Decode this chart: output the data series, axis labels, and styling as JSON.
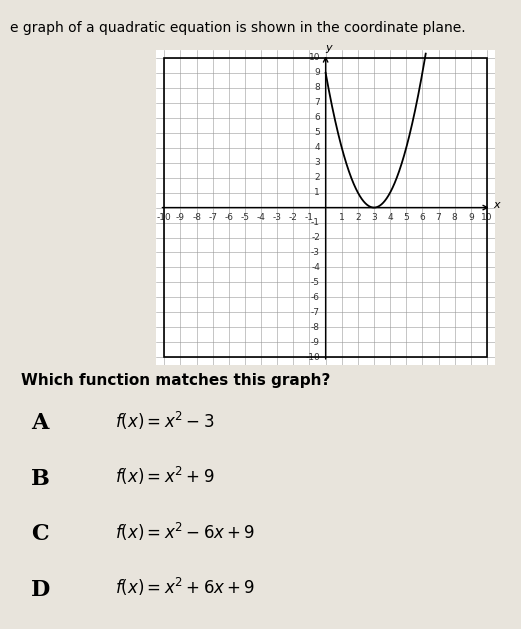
{
  "title": "e graph of a quadratic equation is shown in the coordinate plane.",
  "question": "Which function matches this graph?",
  "options": [
    {
      "label": "A",
      "math": "f(x) = x^2 - 3"
    },
    {
      "label": "B",
      "math": "f(x)= x^2 + 9"
    },
    {
      "label": "C",
      "math": "f(x) = x^2 - 6x + 9"
    },
    {
      "label": "D",
      "math": "f(x) = x^2 + 6x + 9"
    }
  ],
  "x_range": [
    -10,
    10
  ],
  "y_range": [
    -10,
    10
  ],
  "curve_x_start": 0.0,
  "curve_x_end": 6.32,
  "grid_color": "#999999",
  "curve_color": "#000000",
  "background_color": "#e8e4dc",
  "graph_bg": "#e0ddd5",
  "tick_fontsize": 6.5,
  "title_fontsize": 10,
  "question_fontsize": 11,
  "option_label_fontsize": 16,
  "option_math_fontsize": 12
}
